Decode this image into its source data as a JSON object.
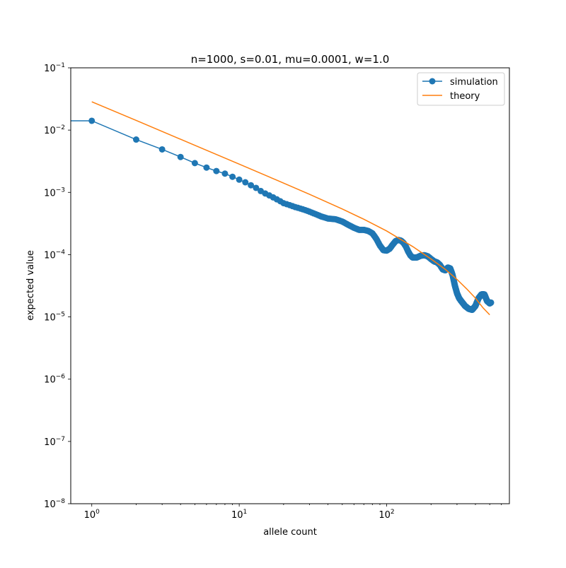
{
  "chart_data": {
    "type": "line",
    "title": "n=1000, s=0.01, mu=0.0001, w=1.0",
    "xlabel": "allele count",
    "ylabel": "expected value",
    "xscale": "log",
    "yscale": "log",
    "xlim": [
      0.72,
      680
    ],
    "ylim": [
      1e-08,
      0.1
    ],
    "grid": false,
    "legend_position": "upper right",
    "x_ticks": [
      {
        "value": 1,
        "base": "10",
        "exp": "0"
      },
      {
        "value": 10,
        "base": "10",
        "exp": "1"
      },
      {
        "value": 100,
        "base": "10",
        "exp": "2"
      }
    ],
    "y_ticks": [
      {
        "value": 1e-08,
        "base": "10",
        "exp": "−8"
      },
      {
        "value": 1e-07,
        "base": "10",
        "exp": "−7"
      },
      {
        "value": 1e-06,
        "base": "10",
        "exp": "−6"
      },
      {
        "value": 1e-05,
        "base": "10",
        "exp": "−5"
      },
      {
        "value": 0.0001,
        "base": "10",
        "exp": "−4"
      },
      {
        "value": 0.001,
        "base": "10",
        "exp": "−3"
      },
      {
        "value": 0.01,
        "base": "10",
        "exp": "−2"
      },
      {
        "value": 0.1,
        "base": "10",
        "exp": "−1"
      }
    ],
    "series": [
      {
        "name": "simulation",
        "color": "#1f77b4",
        "marker": "circle",
        "x0": 0,
        "y0": 0.0141,
        "points": [
          [
            1,
            0.0141
          ],
          [
            2,
            0.00705
          ],
          [
            3,
            0.0049
          ],
          [
            4,
            0.0037
          ],
          [
            5,
            0.00295
          ],
          [
            6,
            0.0025
          ],
          [
            7,
            0.0022
          ],
          [
            8,
            0.002
          ],
          [
            9,
            0.00178
          ],
          [
            10,
            0.0016
          ],
          [
            11,
            0.00145
          ],
          [
            12,
            0.0013
          ],
          [
            13,
            0.00118
          ],
          [
            14,
            0.00105
          ],
          [
            15,
            0.00096
          ],
          [
            17,
            0.00083
          ],
          [
            20,
            0.00067
          ],
          [
            24,
            0.00058
          ],
          [
            28,
            0.00052
          ],
          [
            32,
            0.00046
          ],
          [
            36,
            0.00041
          ],
          [
            40,
            0.00038
          ],
          [
            45,
            0.00037
          ],
          [
            50,
            0.00034
          ],
          [
            55,
            0.0003
          ],
          [
            60,
            0.00027
          ],
          [
            65,
            0.00025
          ],
          [
            70,
            0.00025
          ],
          [
            75,
            0.00024
          ],
          [
            80,
            0.00022
          ],
          [
            85,
            0.00018
          ],
          [
            90,
            0.00014
          ],
          [
            95,
            0.000118
          ],
          [
            100,
            0.000116
          ],
          [
            105,
            0.000125
          ],
          [
            110,
            0.000145
          ],
          [
            115,
            0.000165
          ],
          [
            120,
            0.000172
          ],
          [
            125,
            0.000168
          ],
          [
            130,
            0.000155
          ],
          [
            135,
            0.000135
          ],
          [
            140,
            0.000112
          ],
          [
            145,
            9.7e-05
          ],
          [
            150,
            9e-05
          ],
          [
            160,
            9e-05
          ],
          [
            170,
            9.6e-05
          ],
          [
            180,
            9.8e-05
          ],
          [
            190,
            9.4e-05
          ],
          [
            200,
            8.5e-05
          ],
          [
            210,
            7.8e-05
          ],
          [
            220,
            7.5e-05
          ],
          [
            230,
            6.8e-05
          ],
          [
            240,
            5.8e-05
          ],
          [
            250,
            5.6e-05
          ],
          [
            260,
            6.2e-05
          ],
          [
            270,
            6e-05
          ],
          [
            280,
            4.7e-05
          ],
          [
            290,
            3.2e-05
          ],
          [
            300,
            2.4e-05
          ],
          [
            310,
            2e-05
          ],
          [
            320,
            1.8e-05
          ],
          [
            340,
            1.5e-05
          ],
          [
            360,
            1.35e-05
          ],
          [
            380,
            1.3e-05
          ],
          [
            400,
            1.5e-05
          ],
          [
            420,
            2e-05
          ],
          [
            440,
            2.3e-05
          ],
          [
            460,
            2.3e-05
          ],
          [
            480,
            1.8e-05
          ],
          [
            500,
            1.65e-05
          ],
          [
            510,
            1.7e-05
          ]
        ]
      },
      {
        "name": "theory",
        "color": "#ff7f0e",
        "marker": "none",
        "points": [
          [
            1,
            0.0285
          ],
          [
            2,
            0.0143
          ],
          [
            3,
            0.0095
          ],
          [
            5,
            0.0057
          ],
          [
            10,
            0.00284
          ],
          [
            20,
            0.00141
          ],
          [
            30,
            0.00093
          ],
          [
            50,
            0.00054
          ],
          [
            70,
            0.00037
          ],
          [
            100,
            0.00024
          ],
          [
            150,
            0.000135
          ],
          [
            200,
            8.5e-05
          ],
          [
            250,
            5.8e-05
          ],
          [
            300,
            4e-05
          ],
          [
            350,
            2.8e-05
          ],
          [
            400,
            2e-05
          ],
          [
            450,
            1.4e-05
          ],
          [
            500,
            1.08e-05
          ]
        ]
      }
    ]
  }
}
